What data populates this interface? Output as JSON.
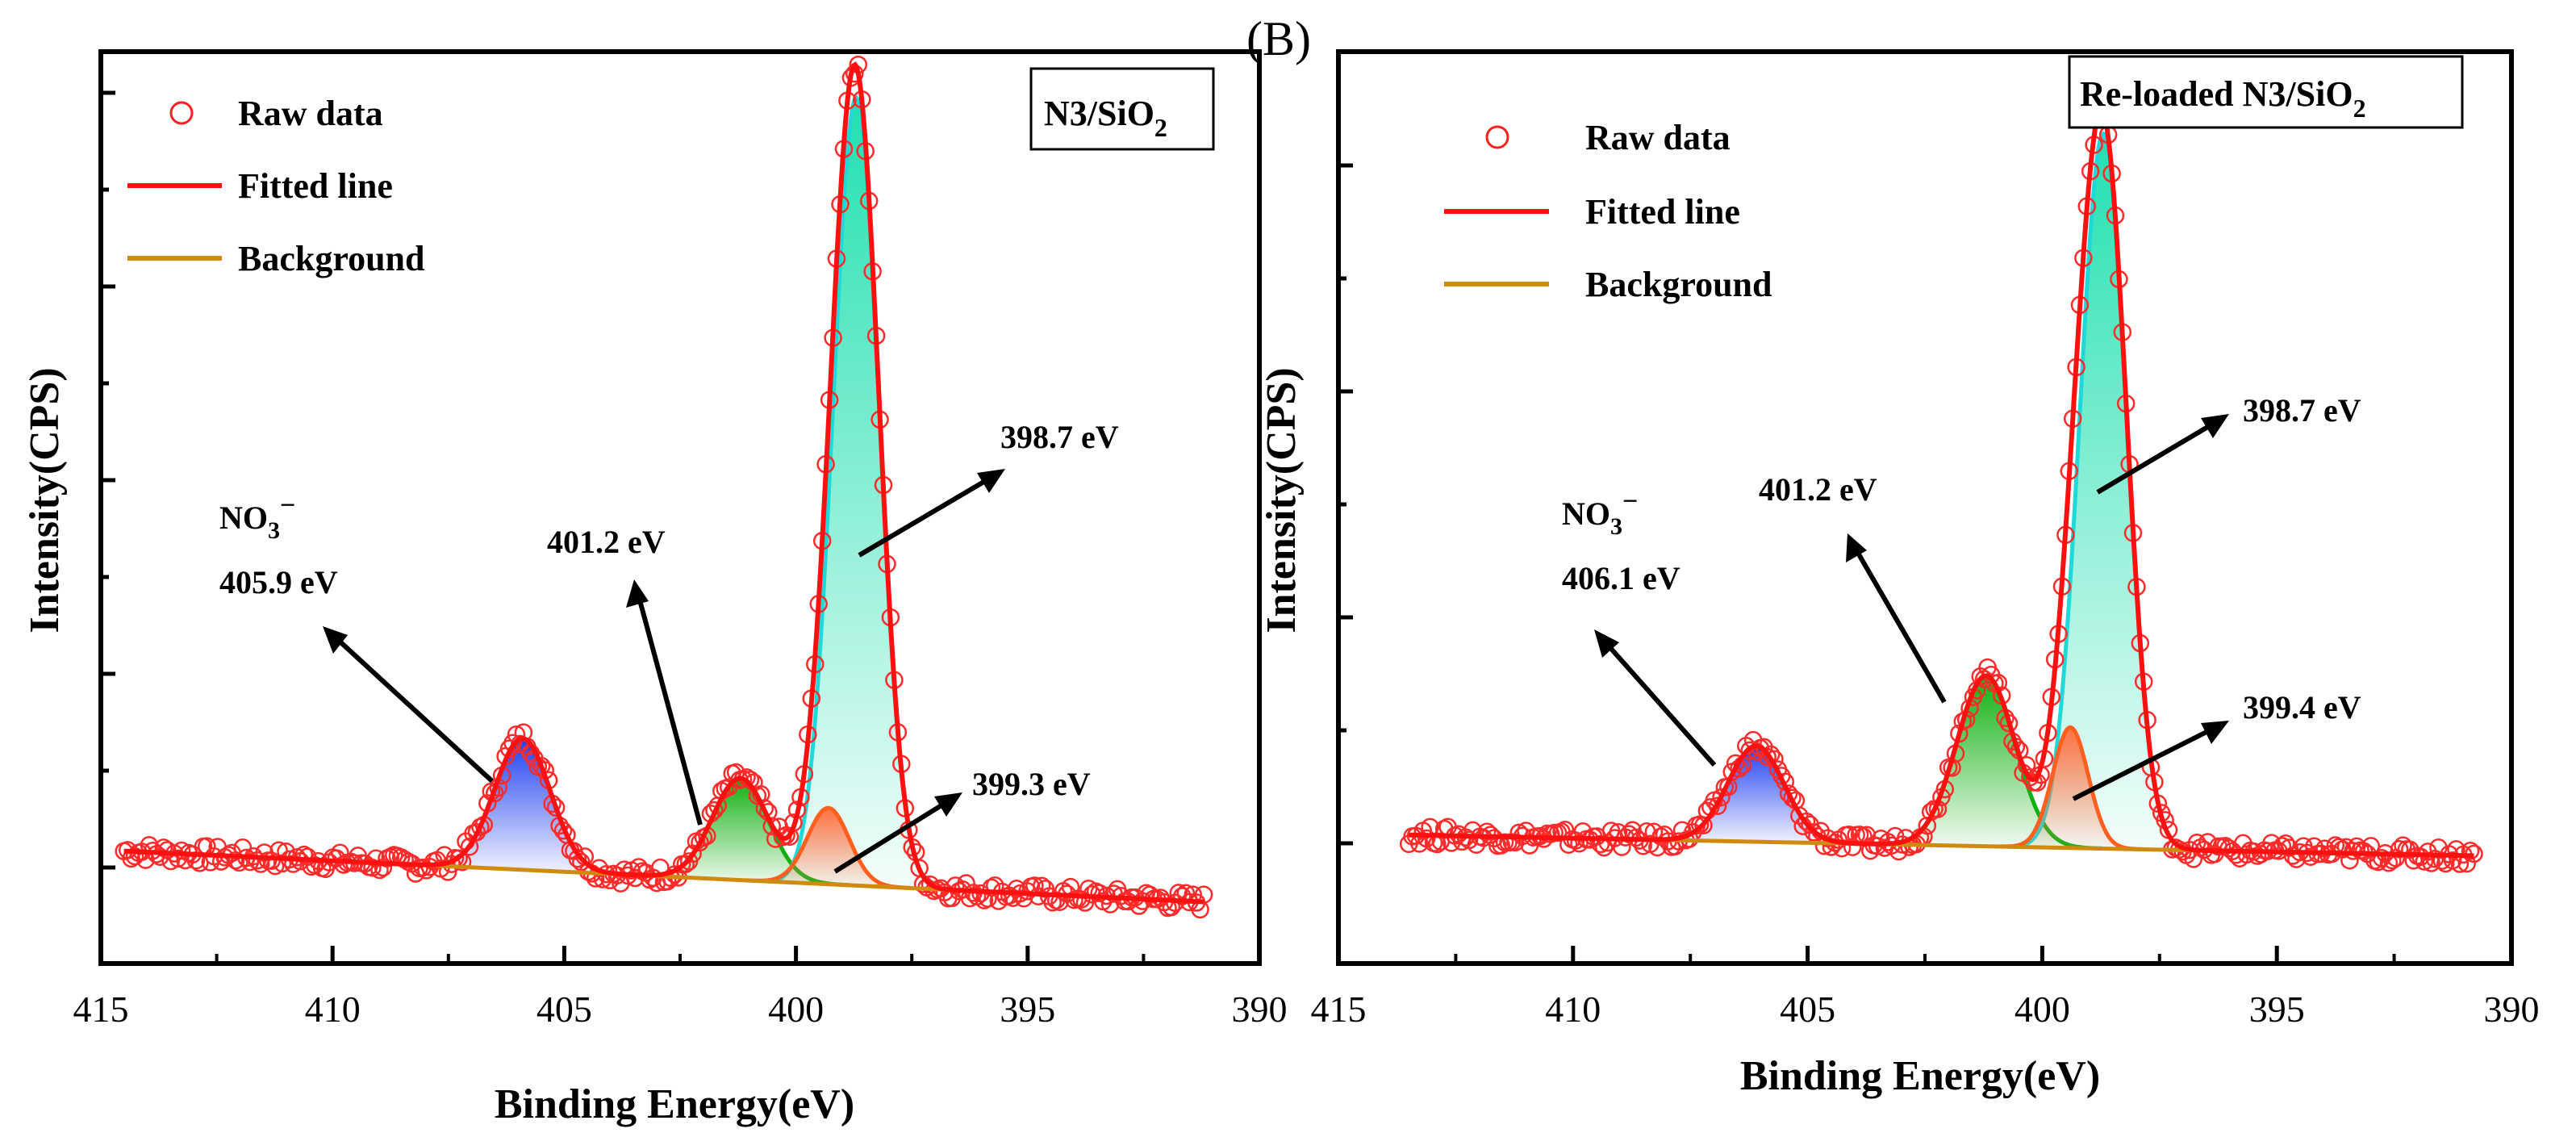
{
  "chart_data": [
    {
      "type": "line",
      "panel_letter": "",
      "sample_label": "N3/SiO",
      "sample_subscript": "2",
      "xlabel": "Binding Energy(eV)",
      "ylabel": "Intensity(CPS)",
      "xlim": [
        415,
        390
      ],
      "xticks": [
        "415",
        "410",
        "405",
        "400",
        "395",
        "390"
      ],
      "legend": [
        "Raw data",
        "Fitted line",
        "Background"
      ],
      "legend_position": "top-left",
      "yticks_labeled": false,
      "background": {
        "start": [
          414.5,
          0.048
        ],
        "end": [
          391.2,
          -0.012
        ]
      },
      "peaks": [
        {
          "center": 398.7,
          "height": 0.93,
          "sigma": 0.5,
          "fill": "#20e0b0",
          "edge": "#20d8d8",
          "label": "398.7 eV"
        },
        {
          "center": 399.3,
          "height": 0.09,
          "sigma": 0.45,
          "fill": "#ff7040",
          "edge": "#ff6020",
          "label": "399.3 eV"
        },
        {
          "center": 401.2,
          "height": 0.12,
          "sigma": 0.6,
          "fill": "#10b010",
          "edge": "#10b010",
          "label": "401.2 eV"
        },
        {
          "center": 405.9,
          "height": 0.155,
          "sigma": 0.6,
          "fill": "#2040f0",
          "edge": "#2040f0",
          "label": "405.9 eV",
          "species": "NO",
          "species_sub": "3",
          "species_sup": "−"
        }
      ]
    },
    {
      "type": "line",
      "panel_letter": "(B)",
      "sample_label": "Re-loaded N3/SiO",
      "sample_subscript": "2",
      "xlabel": "Binding Energy(eV)",
      "ylabel": "Intensity(CPS)",
      "xlim": [
        415,
        390
      ],
      "xticks": [
        "415",
        "410",
        "405",
        "400",
        "395",
        "390"
      ],
      "legend": [
        "Raw data",
        "Fitted line",
        "Background"
      ],
      "legend_position": "top-left",
      "yticks_labeled": false,
      "background": {
        "start": [
          413.5,
          0.01
        ],
        "end": [
          390.8,
          -0.015
        ]
      },
      "peaks": [
        {
          "center": 398.7,
          "height": 0.86,
          "sigma": 0.5,
          "fill": "#20e0b0",
          "edge": "#20d8d8",
          "label": "398.7 eV"
        },
        {
          "center": 399.4,
          "height": 0.145,
          "sigma": 0.38,
          "fill": "#ff7040",
          "edge": "#ff6020",
          "label": "399.4 eV"
        },
        {
          "center": 401.2,
          "height": 0.205,
          "sigma": 0.62,
          "fill": "#10b010",
          "edge": "#10b010",
          "label": "401.2 eV"
        },
        {
          "center": 406.1,
          "height": 0.115,
          "sigma": 0.6,
          "fill": "#2040f0",
          "edge": "#2040f0",
          "label": "406.1 eV",
          "species": "NO",
          "species_sub": "3",
          "species_sup": "−"
        }
      ]
    }
  ]
}
